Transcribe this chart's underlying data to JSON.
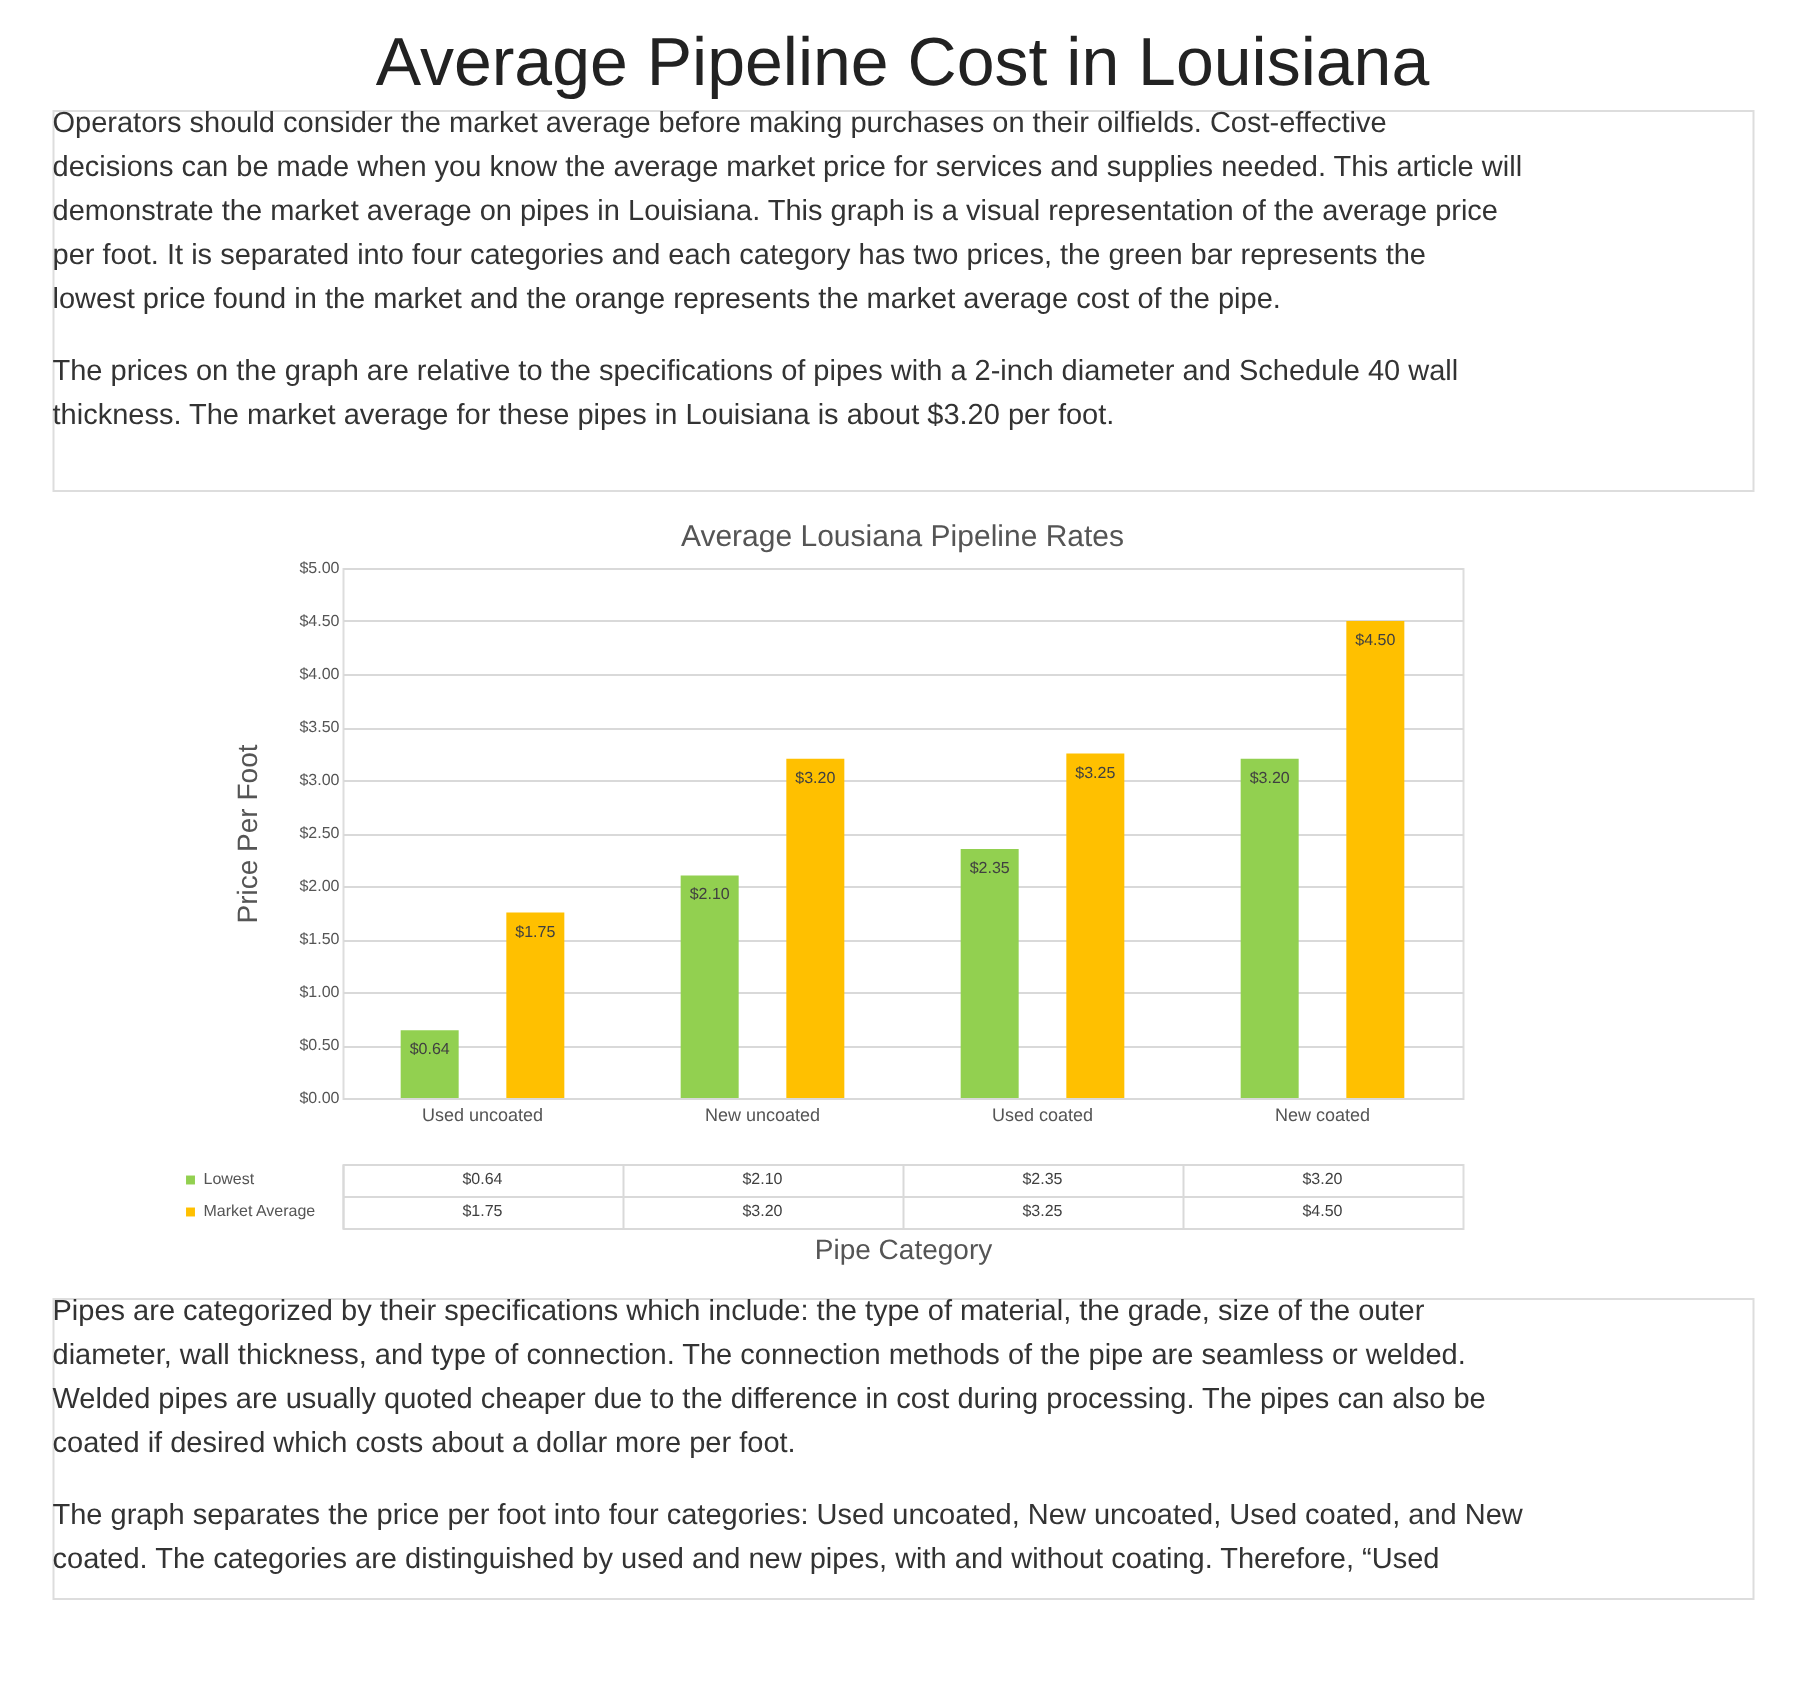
{
  "chart_data": {
    "type": "bar",
    "title": "Average Pipeline Cost in Louisiana",
    "subtitle": "Average Lousiana Pipeline Rates",
    "xlabel": "Pipe Category",
    "ylabel": "Price Per Foot",
    "categories": [
      "Used uncoated",
      "New uncoated",
      "Used coated",
      "New coated"
    ],
    "series": [
      {
        "name": "Lowest",
        "color": "#92d050",
        "values": [
          0.64,
          2.1,
          2.35,
          3.2
        ],
        "value_labels": [
          "$0.64",
          "$2.10",
          "$2.35",
          "$3.20"
        ]
      },
      {
        "name": "Market Average",
        "color": "#ffc000",
        "values": [
          1.75,
          3.2,
          3.25,
          4.5
        ],
        "value_labels": [
          "$1.75",
          "$3.20",
          "$3.25",
          "$4.50"
        ]
      }
    ],
    "ylim": [
      0,
      5
    ],
    "yticks": [
      {
        "value": 0,
        "label": "$0.00"
      },
      {
        "value": 0.5,
        "label": "$0.50"
      },
      {
        "value": 1,
        "label": "$1.00"
      },
      {
        "value": 1.5,
        "label": "$1.50"
      },
      {
        "value": 2,
        "label": "$2.00"
      },
      {
        "value": 2.5,
        "label": "$2.50"
      },
      {
        "value": 3,
        "label": "$3.00"
      },
      {
        "value": 3.5,
        "label": "$3.50"
      },
      {
        "value": 4,
        "label": "$4.00"
      },
      {
        "value": 4.5,
        "label": "$4.50"
      },
      {
        "value": 5,
        "label": "$5.00"
      }
    ],
    "grid": "y",
    "legend": "bottom",
    "annotations": [
      "Operators should consider the market average before making purchases on their oilfields. Cost-effective decisions can be made when you know the average market price for services and supplies needed. This article will demonstrate the market average on pipes in Louisiana. This graph is a visual representation of the average price per foot. It is separated into four categories and each category has two prices, the green bar represents the lowest price found in the market and the orange represents the market average cost of the pipe.",
      "The prices on the graph are relative to the specifications of pipes with a 2-inch diameter and Schedule 40 wall thickness. The market average for these pipes in Louisiana is about $3.20 per foot.",
      "Pipes are categorized by their specifications which include: the type of material, the grade, size of the outer diameter, wall thickness, and type of connection. The connection methods of the pipe are seamless or welded. Welded pipes are usually quoted cheaper due to the difference in cost during processing. The pipes can also be coated if desired which costs about a dollar more per foot.",
      "The graph separates the price per foot into four categories: Used uncoated, New uncoated, Used coated, and New coated. The categories are distinguished by used and new pipes, with and without coating. Therefore, “Used"
    ]
  }
}
